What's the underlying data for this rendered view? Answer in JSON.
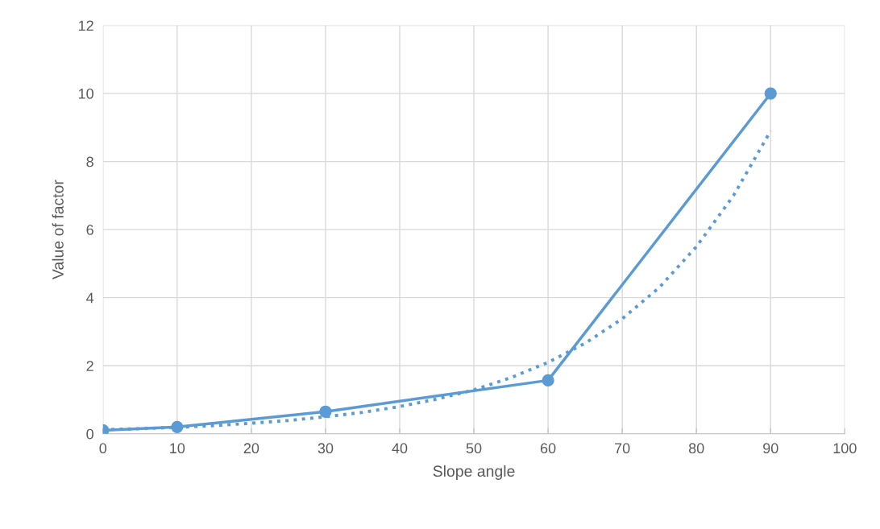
{
  "chart_data": {
    "type": "line",
    "xlabel": "Slope angle",
    "ylabel": "Value of factor",
    "xlim": [
      0,
      100
    ],
    "xticks": [
      0,
      10,
      20,
      30,
      40,
      50,
      60,
      70,
      80,
      90,
      100
    ],
    "ylim": [
      0,
      12
    ],
    "yticks": [
      0,
      2,
      4,
      6,
      8,
      10,
      12
    ],
    "grid": true,
    "series": [
      {
        "color": "#5b9bd5",
        "marker": "circle",
        "line_style": "solid",
        "x": [
          0,
          10,
          30,
          60,
          90
        ],
        "values": [
          0.1,
          0.2,
          0.65,
          1.57,
          10
        ]
      },
      {
        "color": "#5b9bd5",
        "marker": "none",
        "line_style": "dotted",
        "x": [
          0,
          5,
          10,
          15,
          20,
          25,
          30,
          35,
          40,
          45,
          50,
          55,
          60,
          65,
          70,
          75,
          80,
          85,
          90
        ],
        "values": [
          0.12,
          0.15,
          0.19,
          0.24,
          0.31,
          0.39,
          0.5,
          0.63,
          0.8,
          1.02,
          1.29,
          1.65,
          2.1,
          2.66,
          3.38,
          4.3,
          5.5,
          7.0,
          8.9
        ]
      }
    ]
  }
}
